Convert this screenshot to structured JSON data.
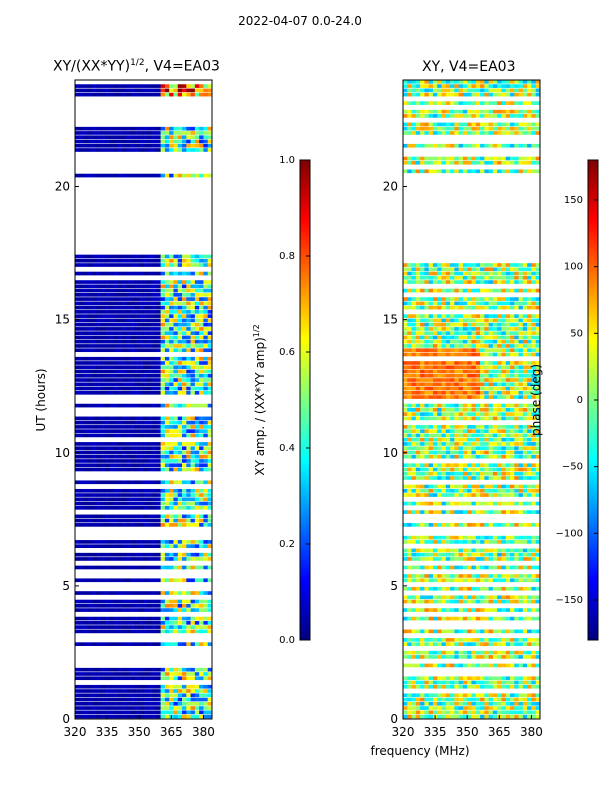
{
  "figure": {
    "suptitle": "2022-04-07 0.0-24.0",
    "xlabel": "frequency (MHz)"
  },
  "colors": {
    "jet": [
      "#00007f",
      "#0000ff",
      "#007fff",
      "#00ffff",
      "#7fff7f",
      "#ffff00",
      "#ff7f00",
      "#ff0000",
      "#7f0000"
    ],
    "flag": "#ffffff"
  },
  "chart_data": [
    {
      "type": "heatmap",
      "title_html_base": "XY/(XX*YY)",
      "title_sup": "1/2",
      "title_suffix": ", V4=EA03",
      "title_plain": "XY/(XX*YY)^1/2, V4=EA03",
      "xlabel": "",
      "ylabel": "UT (hours)",
      "xlim": [
        320,
        384
      ],
      "ylim": [
        0,
        24
      ],
      "xticks": [
        "320",
        "335",
        "350",
        "365",
        "380"
      ],
      "yticks": [
        "0",
        "5",
        "10",
        "15",
        "20"
      ],
      "quantity": "normalized XY amplitude",
      "flagged_ranges_hours": [
        [
          17.5,
          20.3
        ],
        [
          20.6,
          21.2
        ],
        [
          22.4,
          23.4
        ]
      ],
      "colorbar": {
        "label_base": "XY amp. / (XX*YY amp)",
        "label_sup": "1/2",
        "range": [
          0.0,
          1.0
        ],
        "ticks": [
          "0.0",
          "0.2",
          "0.4",
          "0.6",
          "0.8",
          "1.0"
        ]
      }
    },
    {
      "type": "heatmap",
      "title": "XY, V4=EA03",
      "xlabel": "frequency (MHz)",
      "ylabel": "",
      "xlim": [
        320,
        384
      ],
      "ylim": [
        0,
        24
      ],
      "xticks": [
        "320",
        "335",
        "350",
        "365",
        "380"
      ],
      "yticks": [
        "0",
        "5",
        "10",
        "15",
        "20"
      ],
      "quantity": "XY phase (degrees)",
      "flagged_ranges_hours": [
        [
          17.5,
          20.3
        ]
      ],
      "colorbar": {
        "label": "phase (deg)",
        "range": [
          -180,
          180
        ],
        "ticks": [
          "−150",
          "−100",
          "−50",
          "0",
          "50",
          "100",
          "150"
        ]
      }
    }
  ]
}
